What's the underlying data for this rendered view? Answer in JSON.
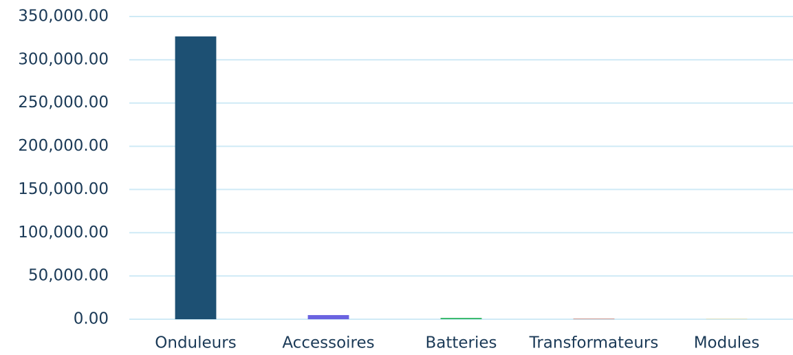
{
  "chart_data": {
    "type": "bar",
    "categories": [
      "Onduleurs",
      "Accessoires",
      "Batteries",
      "Transformateurs",
      "Modules"
    ],
    "values": [
      327000,
      4800,
      1600,
      800,
      400
    ],
    "colors": [
      "#1d5073",
      "#6a63e0",
      "#3dbb6e",
      "#c9928a",
      "#e6d58c"
    ],
    "ylim": [
      0,
      350000
    ],
    "yticks": [
      {
        "value": 0,
        "label": "0.00"
      },
      {
        "value": 50000,
        "label": "50,000.00"
      },
      {
        "value": 100000,
        "label": "100,000.00"
      },
      {
        "value": 150000,
        "label": "150,000.00"
      },
      {
        "value": 200000,
        "label": "200,000.00"
      },
      {
        "value": 250000,
        "label": "250,000.00"
      },
      {
        "value": 300000,
        "label": "300,000.00"
      },
      {
        "value": 350000,
        "label": "350,000.00"
      }
    ],
    "grid": true
  }
}
